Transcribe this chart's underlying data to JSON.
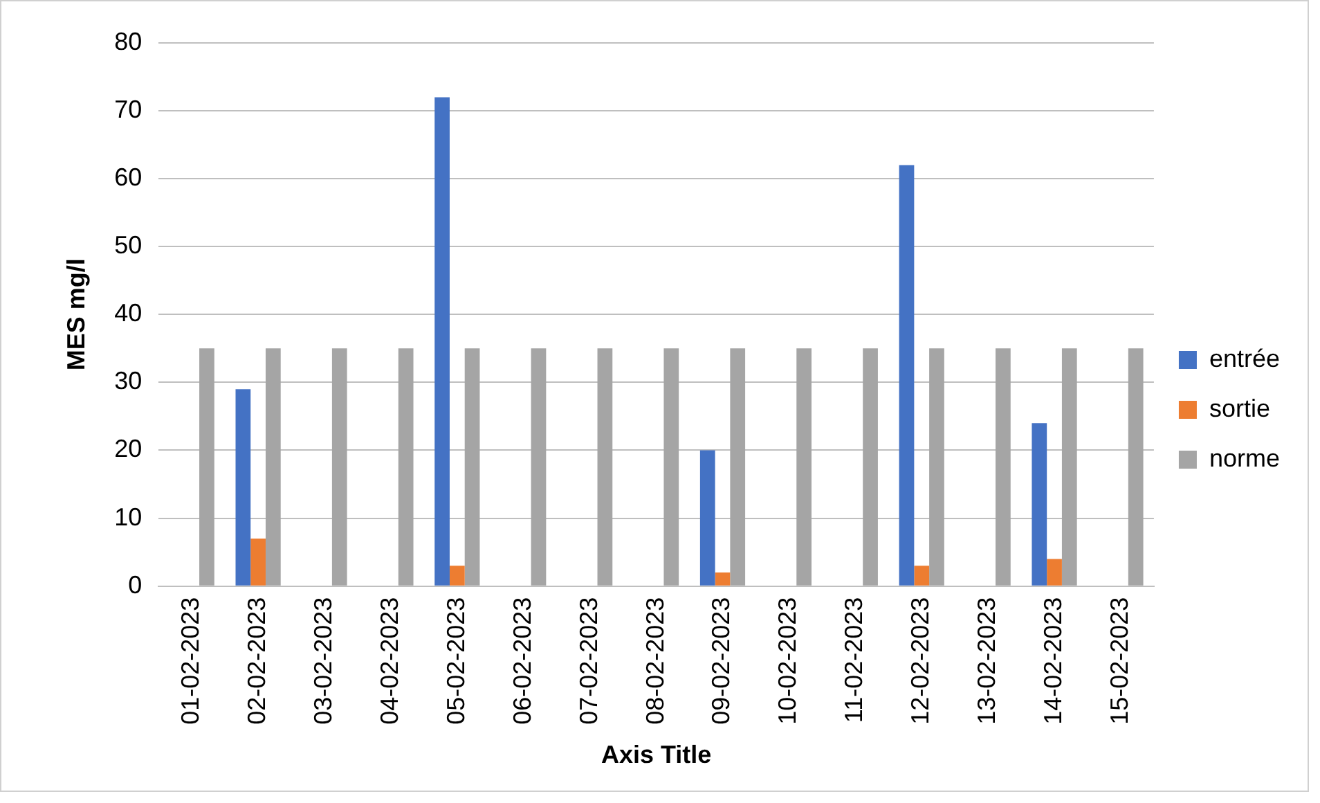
{
  "chart_data": {
    "type": "bar",
    "xlabel": "Axis Title",
    "ylabel": "MES mg/l",
    "categories": [
      "01-02-2023",
      "02-02-2023",
      "03-02-2023",
      "04-02-2023",
      "05-02-2023",
      "06-02-2023",
      "07-02-2023",
      "08-02-2023",
      "09-02-2023",
      "10-02-2023",
      "11-02-2023",
      "12-02-2023",
      "13-02-2023",
      "14-02-2023",
      "15-02-2023"
    ],
    "series": [
      {
        "name": "entrée",
        "color": "#4472c4",
        "values": [
          null,
          29,
          null,
          null,
          72,
          null,
          null,
          null,
          20,
          null,
          null,
          62,
          null,
          24,
          null
        ]
      },
      {
        "name": "sortie",
        "color": "#ed7d31",
        "values": [
          null,
          7,
          null,
          null,
          3,
          null,
          null,
          null,
          2,
          null,
          null,
          3,
          null,
          4,
          null
        ]
      },
      {
        "name": "norme",
        "color": "#a5a5a5",
        "values": [
          35,
          35,
          35,
          35,
          35,
          35,
          35,
          35,
          35,
          35,
          35,
          35,
          35,
          35,
          35
        ]
      }
    ],
    "ylim": [
      0,
      80
    ],
    "yticks": [
      0,
      10,
      20,
      30,
      40,
      50,
      60,
      70,
      80
    ],
    "grid": "y",
    "legend": "right"
  }
}
